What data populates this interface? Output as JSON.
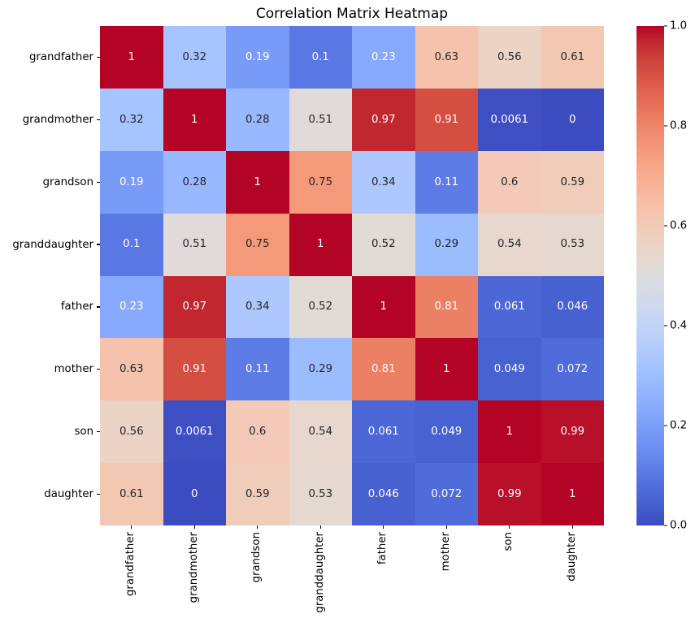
{
  "chart_data": {
    "type": "heatmap",
    "title": "Correlation Matrix Heatmap",
    "x_categories": [
      "grandfather",
      "grandmother",
      "grandson",
      "granddaughter",
      "father",
      "mother",
      "son",
      "daughter"
    ],
    "y_categories": [
      "grandfather",
      "grandmother",
      "grandson",
      "granddaughter",
      "father",
      "mother",
      "son",
      "daughter"
    ],
    "matrix": [
      [
        1,
        0.32,
        0.19,
        0.1,
        0.23,
        0.63,
        0.56,
        0.61
      ],
      [
        0.32,
        1,
        0.28,
        0.51,
        0.97,
        0.91,
        0.0061,
        0
      ],
      [
        0.19,
        0.28,
        1,
        0.75,
        0.34,
        0.11,
        0.6,
        0.59
      ],
      [
        0.1,
        0.51,
        0.75,
        1,
        0.52,
        0.29,
        0.54,
        0.53
      ],
      [
        0.23,
        0.97,
        0.34,
        0.52,
        1,
        0.81,
        0.061,
        0.046
      ],
      [
        0.63,
        0.91,
        0.11,
        0.29,
        0.81,
        1,
        0.049,
        0.072
      ],
      [
        0.56,
        0.0061,
        0.6,
        0.54,
        0.061,
        0.049,
        1,
        0.99
      ],
      [
        0.61,
        0,
        0.59,
        0.53,
        0.046,
        0.072,
        0.99,
        1
      ]
    ],
    "vmin": 0,
    "vmax": 1,
    "colormap": "coolwarm",
    "colormap_min_hex": "#3b4cc0",
    "colormap_mid_hex": "#dddddd",
    "colormap_max_hex": "#b40426",
    "colormap_stops": [
      [
        59,
        76,
        192
      ],
      [
        68,
        90,
        204
      ],
      [
        77,
        104,
        215
      ],
      [
        87,
        117,
        225
      ],
      [
        98,
        130,
        234
      ],
      [
        108,
        142,
        241
      ],
      [
        119,
        154,
        247
      ],
      [
        130,
        165,
        251
      ],
      [
        141,
        176,
        254
      ],
      [
        152,
        185,
        255
      ],
      [
        163,
        194,
        255
      ],
      [
        174,
        201,
        253
      ],
      [
        184,
        208,
        249
      ],
      [
        194,
        213,
        244
      ],
      [
        204,
        217,
        238
      ],
      [
        213,
        219,
        230
      ],
      [
        221,
        221,
        221
      ],
      [
        229,
        216,
        209
      ],
      [
        236,
        211,
        197
      ],
      [
        241,
        204,
        185
      ],
      [
        245,
        196,
        173
      ],
      [
        247,
        187,
        160
      ],
      [
        247,
        177,
        148
      ],
      [
        247,
        166,
        135
      ],
      [
        244,
        154,
        123
      ],
      [
        241,
        141,
        111
      ],
      [
        236,
        127,
        99
      ],
      [
        229,
        112,
        88
      ],
      [
        222,
        96,
        77
      ],
      [
        213,
        80,
        66
      ],
      [
        203,
        62,
        56
      ],
      [
        192,
        40,
        47
      ],
      [
        180,
        4,
        38
      ]
    ],
    "annot_colors": {
      "light": "#ffffff",
      "dark": "#262626"
    },
    "luminance_threshold": 0.408,
    "colorbar_ticks": [
      {
        "value": 1.0,
        "label": "1.0"
      },
      {
        "value": 0.8,
        "label": "0.8"
      },
      {
        "value": 0.6,
        "label": "0.6"
      },
      {
        "value": 0.4,
        "label": "0.4"
      },
      {
        "value": 0.2,
        "label": "0.2"
      },
      {
        "value": 0.0,
        "label": "0.0"
      }
    ],
    "legend_position": "right",
    "grid": false,
    "axis_tick_color": "#000000",
    "background_color": "#ffffff"
  }
}
